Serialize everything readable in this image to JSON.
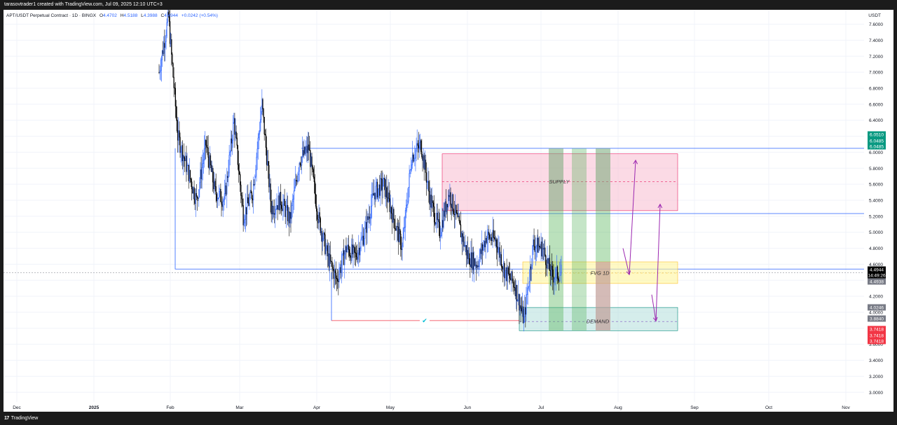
{
  "header": {
    "caption": "tarasovtrader1 created with TradingView.com, Jul 09, 2025 12:10 UTC+3"
  },
  "footer": {
    "logo_glyph": "17",
    "brand": "TradingView"
  },
  "legend": {
    "symbol": "APT/USDT Perpetual Contract · 1D · BINGX",
    "o_label": "O",
    "o_value": "4.4702",
    "h_label": "H",
    "h_value": "4.5188",
    "l_label": "L",
    "l_value": "4.3988",
    "c_label": "C",
    "c_value": "4.4944",
    "change": "+0.0242 (+0.54%)"
  },
  "currency": "USDT",
  "colors": {
    "up": "#2962ff",
    "down": "#000000",
    "supply_fill": "#f8bbd0",
    "fvg_fill": "#fff59d",
    "demand_fill": "#b2dfdb",
    "accent_purple": "#9c27b0",
    "last_price_tag": "#000000",
    "green_tag": "#089981",
    "red_tag": "#f23645",
    "gray_tag": "#787b86"
  },
  "chart_data": {
    "type": "candlestick",
    "y_axis": {
      "ticks": [
        "7.6000",
        "7.4000",
        "7.2000",
        "7.0000",
        "6.8000",
        "6.6000",
        "6.4000",
        "6.2000",
        "6.0000",
        "5.8000",
        "5.6000",
        "5.4000",
        "5.2000",
        "5.0000",
        "4.8000",
        "4.6000",
        "4.4000",
        "4.2000",
        "4.0000",
        "3.8000",
        "3.6000",
        "3.4000",
        "3.2000",
        "3.0000"
      ],
      "range": [
        2.88,
        7.78
      ]
    },
    "x_axis": {
      "ticks": [
        {
          "label": "Dec",
          "bold": false
        },
        {
          "label": "2025",
          "bold": true
        },
        {
          "label": "Feb",
          "bold": false
        },
        {
          "label": "Mar",
          "bold": false
        },
        {
          "label": "Apr",
          "bold": false
        },
        {
          "label": "May",
          "bold": false
        },
        {
          "label": "Jun",
          "bold": false
        },
        {
          "label": "Jul",
          "bold": false
        },
        {
          "label": "Aug",
          "bold": false
        },
        {
          "label": "Sep",
          "bold": false
        },
        {
          "label": "Oct",
          "bold": false
        },
        {
          "label": "Nov",
          "bold": false
        }
      ]
    },
    "anchors": [
      [
        0,
        7.0
      ],
      [
        2,
        7.7
      ],
      [
        4,
        6.2
      ],
      [
        6,
        5.8
      ],
      [
        8,
        5.4
      ],
      [
        10,
        6.1
      ],
      [
        12,
        5.5
      ],
      [
        14,
        5.4
      ],
      [
        16,
        6.4
      ],
      [
        18,
        5.2
      ],
      [
        20,
        5.5
      ],
      [
        22,
        6.6
      ],
      [
        24,
        5.3
      ],
      [
        26,
        5.4
      ],
      [
        28,
        5.15
      ],
      [
        30,
        5.9
      ],
      [
        32,
        6.05
      ],
      [
        34,
        5.2
      ],
      [
        36,
        4.7
      ],
      [
        38,
        4.4
      ],
      [
        40,
        4.8
      ],
      [
        42,
        4.7
      ],
      [
        44,
        5.0
      ],
      [
        46,
        5.5
      ],
      [
        48,
        5.6
      ],
      [
        50,
        5.2
      ],
      [
        52,
        4.8
      ],
      [
        54,
        5.95
      ],
      [
        56,
        6.1
      ],
      [
        58,
        5.4
      ],
      [
        60,
        5.0
      ],
      [
        62,
        5.5
      ],
      [
        64,
        5.1
      ],
      [
        66,
        4.7
      ],
      [
        68,
        4.6
      ],
      [
        70,
        4.95
      ],
      [
        72,
        4.9
      ],
      [
        74,
        4.5
      ],
      [
        76,
        4.35
      ],
      [
        78,
        3.9
      ],
      [
        80,
        4.85
      ],
      [
        82,
        4.8
      ],
      [
        84,
        4.45
      ],
      [
        86,
        4.4944
      ]
    ],
    "overlays": {
      "supply": {
        "label": "SUPPLY",
        "top": 5.98,
        "bottom": 5.27,
        "mid": 5.63
      },
      "fvg": {
        "label": "FVG 1D",
        "top": 4.63,
        "bottom": 4.36,
        "mid": 4.49
      },
      "demand": {
        "label": "DEMAND",
        "top": 4.06,
        "bottom": 3.77,
        "mid": 3.885
      },
      "hlines": [
        6.0485,
        5.234,
        4.54
      ],
      "demand_trendline": 3.896
    },
    "price_tags": [
      {
        "value": "6.0510",
        "color": "green"
      },
      {
        "value": "6.0485",
        "color": "green"
      },
      {
        "value": "6.0485",
        "color": "green"
      },
      {
        "value": "4.4944",
        "color": "black"
      },
      {
        "value": "14:49:26",
        "color": "black"
      },
      {
        "value": "4.4938",
        "color": "gray"
      },
      {
        "value": "4.0246",
        "color": "gray"
      },
      {
        "value": "3.8840",
        "color": "gray"
      },
      {
        "value": "3.7418",
        "color": "red"
      },
      {
        "value": "3.7418",
        "color": "red"
      },
      {
        "value": "3.7418",
        "color": "red"
      }
    ],
    "checkmark": "✔"
  }
}
